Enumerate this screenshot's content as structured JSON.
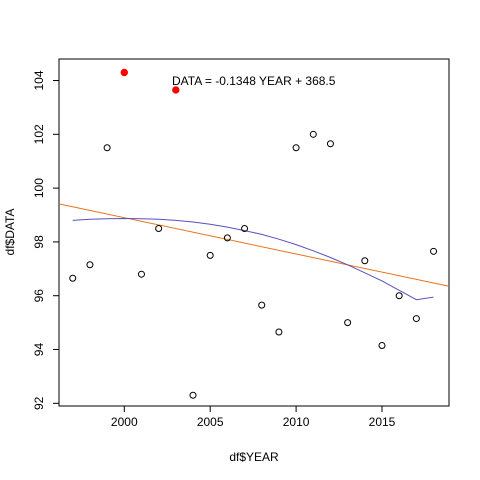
{
  "chart_data": {
    "type": "scatter",
    "xlabel": "df$YEAR",
    "ylabel": "df$DATA",
    "xlim": [
      1996.2,
      2018.9
    ],
    "ylim": [
      91.9,
      104.8
    ],
    "x_ticks": [
      2000,
      2005,
      2010,
      2015
    ],
    "y_ticks": [
      92,
      94,
      96,
      98,
      100,
      102,
      104
    ],
    "x_tick_labels": [
      "2000",
      "2005",
      "2010",
      "2015"
    ],
    "y_tick_labels": [
      "92",
      "94",
      "96",
      "98",
      "100",
      "102",
      "104"
    ],
    "grid": false,
    "annotation": "DATA = -0.1348 YEAR + 368.5",
    "points": [
      {
        "x": 1997,
        "y": 96.65
      },
      {
        "x": 1998,
        "y": 97.15
      },
      {
        "x": 1999,
        "y": 101.5
      },
      {
        "x": 2000,
        "y": 104.3,
        "highlight": true
      },
      {
        "x": 2001,
        "y": 96.8
      },
      {
        "x": 2002,
        "y": 98.5
      },
      {
        "x": 2003,
        "y": 103.65,
        "highlight": true
      },
      {
        "x": 2004,
        "y": 92.3
      },
      {
        "x": 2005,
        "y": 97.5
      },
      {
        "x": 2006,
        "y": 98.15
      },
      {
        "x": 2007,
        "y": 98.5
      },
      {
        "x": 2008,
        "y": 95.65
      },
      {
        "x": 2009,
        "y": 94.65
      },
      {
        "x": 2010,
        "y": 101.5
      },
      {
        "x": 2011,
        "y": 102.0
      },
      {
        "x": 2012,
        "y": 101.65
      },
      {
        "x": 2013,
        "y": 95.0
      },
      {
        "x": 2014,
        "y": 97.3
      },
      {
        "x": 2015,
        "y": 94.15
      },
      {
        "x": 2016,
        "y": 96.0
      },
      {
        "x": 2017,
        "y": 95.15
      },
      {
        "x": 2018,
        "y": 97.65
      }
    ],
    "linear_fit": {
      "slope": -0.1348,
      "intercept": 368.5,
      "color": "#e8731a"
    },
    "curve_fit": {
      "color": "#5a4fc0",
      "x": [
        1997,
        1998,
        1999,
        2000,
        2001,
        2002,
        2003,
        2004,
        2005,
        2006,
        2007,
        2008,
        2009,
        2010,
        2011,
        2012,
        2013,
        2014,
        2015,
        2016,
        2017,
        2018
      ],
      "y": [
        98.8,
        98.84,
        98.86,
        98.87,
        98.86,
        98.84,
        98.8,
        98.74,
        98.66,
        98.55,
        98.42,
        98.28,
        98.1,
        97.9,
        97.67,
        97.42,
        97.15,
        96.85,
        96.55,
        96.2,
        95.85,
        95.95
      ]
    },
    "colors": {
      "highlight": "#ff0000",
      "point": "#000000",
      "axis": "#000000"
    }
  }
}
